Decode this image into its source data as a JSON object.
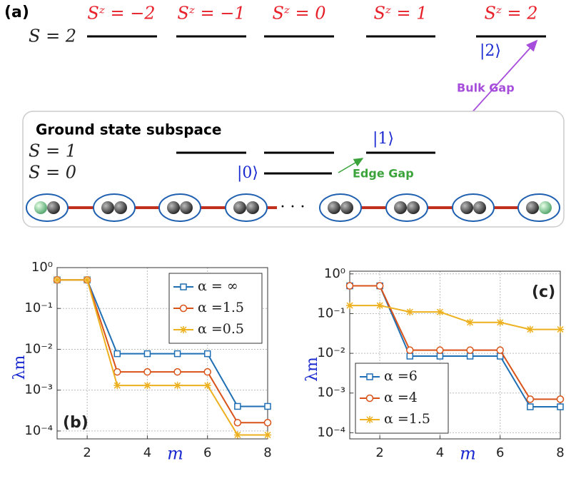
{
  "diagram": {
    "panel_label": "(a)",
    "sz_labels": [
      "Sᶻ = −2",
      "Sᶻ = −1",
      "Sᶻ = 0",
      "Sᶻ = 1",
      "Sᶻ = 2"
    ],
    "s2_label": "S = 2",
    "s1_label": "S = 1",
    "s0_label": "S = 0",
    "ket2": "|2⟩",
    "ket1": "|1⟩",
    "ket0": "|0⟩",
    "box_title": "Ground state subspace",
    "bulk_gap": "Bulk Gap",
    "edge_gap": "Edge Gap"
  },
  "chart_data": [
    {
      "type": "line",
      "label": "(b)",
      "xlabel": "m",
      "ylabel": "λm",
      "x": [
        1,
        2,
        3,
        4,
        5,
        6,
        7,
        8
      ],
      "xlim": [
        1,
        8
      ],
      "xticks": [
        2,
        4,
        6,
        8
      ],
      "ylim": [
        6.4e-05,
        1
      ],
      "log_y": true,
      "grid": true,
      "legend": "upper right",
      "yticks": [
        {
          "value": 1,
          "label": "10⁰"
        },
        {
          "value": 0.1,
          "label": "10⁻¹"
        },
        {
          "value": 0.01,
          "label": "10⁻²"
        },
        {
          "value": 0.001,
          "label": "10⁻³"
        },
        {
          "value": 0.0001,
          "label": "10⁻⁴"
        }
      ],
      "series": [
        {
          "name": "α = ∞",
          "color": "#1f6fb4",
          "marker": "square",
          "values": [
            0.5,
            0.5,
            0.0078,
            0.0078,
            0.0078,
            0.0078,
            0.0004,
            0.0004
          ]
        },
        {
          "name": "α =1.5",
          "color": "#d95319",
          "marker": "circle",
          "values": [
            0.5,
            0.5,
            0.0028,
            0.0028,
            0.0028,
            0.0028,
            0.00016,
            0.00016
          ]
        },
        {
          "name": "α =0.5",
          "color": "#edb120",
          "marker": "asterisk",
          "values": [
            0.5,
            0.5,
            0.0013,
            0.0013,
            0.0013,
            0.0013,
            8e-05,
            8e-05
          ]
        }
      ]
    },
    {
      "type": "line",
      "label": "(c)",
      "xlabel": "m",
      "ylabel": "λm",
      "x": [
        1,
        2,
        3,
        4,
        5,
        6,
        7,
        8
      ],
      "xlim": [
        1,
        8
      ],
      "xticks": [
        2,
        4,
        6,
        8
      ],
      "ylim": [
        7e-05,
        1.17
      ],
      "log_y": true,
      "grid": true,
      "legend": "lower left",
      "yticks": [
        {
          "value": 1,
          "label": "10⁰"
        },
        {
          "value": 0.1,
          "label": "10⁻¹"
        },
        {
          "value": 0.01,
          "label": "10⁻²"
        },
        {
          "value": 0.001,
          "label": "10⁻³"
        },
        {
          "value": 0.0001,
          "label": "10⁻⁴"
        }
      ],
      "series": [
        {
          "name": "α =6",
          "color": "#1f6fb4",
          "marker": "square",
          "values": [
            0.5,
            0.5,
            0.0085,
            0.0085,
            0.0085,
            0.0085,
            0.00045,
            0.00045
          ]
        },
        {
          "name": "α =4",
          "color": "#d95319",
          "marker": "circle",
          "values": [
            0.5,
            0.5,
            0.012,
            0.012,
            0.012,
            0.012,
            0.0007,
            0.0007
          ]
        },
        {
          "name": "α =1.5",
          "color": "#edb120",
          "marker": "asterisk",
          "values": [
            0.16,
            0.16,
            0.11,
            0.11,
            0.06,
            0.06,
            0.04,
            0.04
          ]
        }
      ]
    }
  ]
}
